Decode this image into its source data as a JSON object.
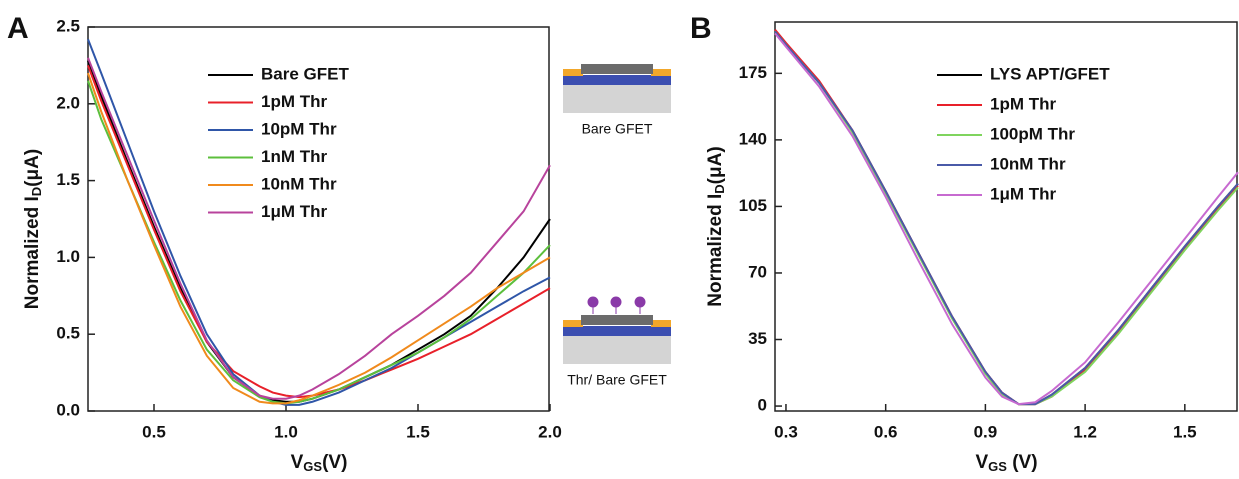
{
  "chart_data": [
    {
      "type": "line",
      "panel": "A",
      "xlabel": {
        "main": "V",
        "sub": "GS",
        "rest": "(V)"
      },
      "ylabel": {
        "main": "Normalized I",
        "sub": "D",
        "rest": "(μA)"
      },
      "annotations": [
        "Bare GFET",
        "Thr/ Bare GFET"
      ],
      "xlim": [
        0.25,
        2.0
      ],
      "ylim": [
        0,
        2.5
      ],
      "xticks": [
        0.5,
        {
          "value": 1,
          "label": "1.0"
        },
        1.5,
        {
          "value": 2,
          "label": "2.0"
        }
      ],
      "yticks": [
        {
          "value": 0,
          "label": "0.0"
        },
        0.5,
        {
          "value": 1,
          "label": "1.0"
        },
        1.5,
        {
          "value": 2,
          "label": "2.0"
        },
        2.5
      ],
      "x": [
        0.25,
        0.3,
        0.4,
        0.5,
        0.6,
        0.7,
        0.8,
        0.9,
        0.95,
        1.0,
        1.05,
        1.1,
        1.2,
        1.3,
        1.4,
        1.5,
        1.6,
        1.7,
        1.8,
        1.9,
        2.0
      ],
      "series": [
        {
          "name": "Bare GFET",
          "color": "#000000",
          "values": [
            2.28,
            2.05,
            1.62,
            1.2,
            0.8,
            0.45,
            0.22,
            0.1,
            0.07,
            0.06,
            0.06,
            0.08,
            0.14,
            0.22,
            0.3,
            0.4,
            0.5,
            0.62,
            0.8,
            1.0,
            1.25
          ]
        },
        {
          "name": "1pM Thr",
          "color": "#e8202a",
          "values": [
            2.25,
            2.02,
            1.6,
            1.18,
            0.78,
            0.45,
            0.26,
            0.16,
            0.12,
            0.1,
            0.09,
            0.1,
            0.14,
            0.2,
            0.27,
            0.34,
            0.42,
            0.5,
            0.6,
            0.7,
            0.8
          ]
        },
        {
          "name": "10pM Thr",
          "color": "#2f56a8",
          "values": [
            2.42,
            2.2,
            1.75,
            1.3,
            0.88,
            0.5,
            0.24,
            0.1,
            0.06,
            0.04,
            0.04,
            0.06,
            0.12,
            0.2,
            0.28,
            0.38,
            0.48,
            0.58,
            0.68,
            0.78,
            0.87
          ]
        },
        {
          "name": "1nM Thr",
          "color": "#5cbf3c",
          "values": [
            2.15,
            1.9,
            1.5,
            1.1,
            0.72,
            0.4,
            0.2,
            0.09,
            0.06,
            0.05,
            0.06,
            0.08,
            0.14,
            0.22,
            0.3,
            0.38,
            0.48,
            0.6,
            0.75,
            0.9,
            1.08
          ]
        },
        {
          "name": "10nM Thr",
          "color": "#f08a1c",
          "values": [
            2.2,
            1.95,
            1.5,
            1.08,
            0.68,
            0.36,
            0.15,
            0.06,
            0.05,
            0.05,
            0.07,
            0.1,
            0.17,
            0.25,
            0.35,
            0.46,
            0.57,
            0.68,
            0.8,
            0.9,
            1.0
          ]
        },
        {
          "name": "1μM Thr",
          "color": "#b8439c",
          "values": [
            2.3,
            2.08,
            1.66,
            1.24,
            0.83,
            0.46,
            0.22,
            0.1,
            0.08,
            0.08,
            0.1,
            0.14,
            0.24,
            0.36,
            0.5,
            0.62,
            0.75,
            0.9,
            1.1,
            1.3,
            1.6
          ]
        }
      ]
    },
    {
      "type": "line",
      "panel": "B",
      "xlabel": {
        "main": "V",
        "sub": "GS",
        "rest": " (V)"
      },
      "ylabel": {
        "main": "Normalized I",
        "sub": "D",
        "rest": "(μA)"
      },
      "xlim": [
        0.267,
        1.66
      ],
      "ylim": [
        -2.6,
        202
      ],
      "xticks": [
        0.3,
        0.6,
        0.9,
        1.2,
        1.5
      ],
      "yticks": [
        0,
        35,
        70,
        105,
        140,
        175
      ],
      "x": [
        0.267,
        0.3,
        0.4,
        0.5,
        0.6,
        0.7,
        0.8,
        0.9,
        0.95,
        1.0,
        1.05,
        1.1,
        1.2,
        1.3,
        1.4,
        1.5,
        1.6,
        1.66
      ],
      "series": [
        {
          "name": "LYS APT/GFET",
          "color": "#000000",
          "values": [
            197,
            190,
            170,
            145,
            113,
            80,
            47,
            18,
            7,
            1,
            1,
            6,
            20,
            40,
            62,
            84,
            105,
            117
          ]
        },
        {
          "name": "1pM Thr",
          "color": "#e8202a",
          "values": [
            198,
            191,
            171,
            145,
            113,
            80,
            47,
            18,
            7,
            1,
            1,
            5,
            19,
            39,
            61,
            83,
            104,
            116
          ]
        },
        {
          "name": "100pM Thr",
          "color": "#7fd45e",
          "values": [
            197,
            190,
            170,
            144,
            112,
            79,
            46,
            17,
            6,
            1,
            1,
            5,
            18,
            38,
            60,
            82,
            103,
            115
          ]
        },
        {
          "name": "10nM Thr",
          "color": "#4a5aa8",
          "values": [
            197,
            190,
            170,
            145,
            113,
            80,
            47,
            18,
            7,
            1,
            1,
            6,
            20,
            40,
            62,
            84,
            105,
            117
          ]
        },
        {
          "name": "1μM Thr",
          "color": "#c76ad0",
          "values": [
            196,
            189,
            168,
            142,
            110,
            76,
            43,
            15,
            5,
            1,
            2,
            8,
            23,
            44,
            66,
            88,
            110,
            123
          ]
        }
      ]
    }
  ]
}
